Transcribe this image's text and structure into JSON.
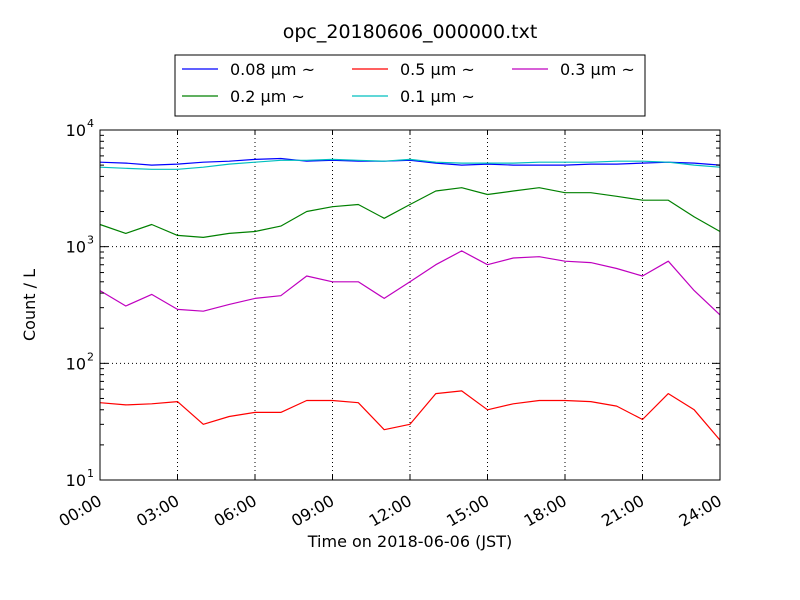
{
  "figure": {
    "title": "opc_20180606_000000.txt"
  },
  "chart_data": {
    "type": "line",
    "title": "opc_20180606_000000.txt",
    "xlabel": "Time on 2018-06-06 (JST)",
    "ylabel": "Count / L",
    "x_unit": "hours",
    "xlim": [
      "00:00",
      "24:00"
    ],
    "ylim": [
      10,
      10000
    ],
    "yscale": "log",
    "x_ticks": [
      "00:00",
      "03:00",
      "06:00",
      "09:00",
      "12:00",
      "15:00",
      "18:00",
      "21:00",
      "24:00"
    ],
    "y_ticks": [
      {
        "base": "10",
        "exp": "1",
        "value": 10
      },
      {
        "base": "10",
        "exp": "2",
        "value": 100
      },
      {
        "base": "10",
        "exp": "3",
        "value": 1000
      },
      {
        "base": "10",
        "exp": "4",
        "value": 10000
      }
    ],
    "grid": true,
    "legend_position": "top-center",
    "times": [
      "00:00",
      "01:00",
      "02:00",
      "03:00",
      "04:00",
      "05:00",
      "06:00",
      "07:00",
      "08:00",
      "09:00",
      "10:00",
      "11:00",
      "12:00",
      "13:00",
      "14:00",
      "15:00",
      "16:00",
      "17:00",
      "18:00",
      "19:00",
      "20:00",
      "21:00",
      "22:00",
      "23:00",
      "24:00"
    ],
    "series": [
      {
        "name": "0.08 μm ~",
        "color": "#0000ff",
        "values": [
          5300,
          5200,
          5000,
          5100,
          5300,
          5400,
          5600,
          5700,
          5400,
          5500,
          5400,
          5400,
          5500,
          5200,
          5000,
          5100,
          5000,
          5000,
          5000,
          5100,
          5100,
          5200,
          5300,
          5200,
          5000
        ]
      },
      {
        "name": "0.2 μm ~",
        "color": "#008000",
        "values": [
          1550,
          1300,
          1550,
          1250,
          1200,
          1300,
          1350,
          1500,
          2000,
          2200,
          2300,
          1750,
          2300,
          3000,
          3200,
          2800,
          3000,
          3200,
          2900,
          2900,
          2700,
          2500,
          2500,
          1800,
          1350
        ]
      },
      {
        "name": "0.5 μm ~",
        "color": "#ff0000",
        "values": [
          46,
          44,
          45,
          47,
          30,
          35,
          38,
          38,
          48,
          48,
          46,
          27,
          30,
          55,
          58,
          40,
          45,
          48,
          48,
          47,
          43,
          33,
          55,
          40,
          22
        ]
      },
      {
        "name": "0.1 μm ~",
        "color": "#00bfbf",
        "values": [
          4800,
          4700,
          4600,
          4600,
          4800,
          5100,
          5300,
          5500,
          5500,
          5600,
          5500,
          5400,
          5600,
          5300,
          5200,
          5200,
          5200,
          5300,
          5300,
          5300,
          5400,
          5400,
          5300,
          5000,
          4800
        ]
      },
      {
        "name": "0.3 μm ~",
        "color": "#bf00bf",
        "values": [
          420,
          310,
          390,
          290,
          280,
          320,
          360,
          380,
          560,
          500,
          500,
          360,
          500,
          700,
          920,
          700,
          800,
          820,
          750,
          730,
          650,
          560,
          750,
          420,
          260
        ]
      }
    ]
  }
}
